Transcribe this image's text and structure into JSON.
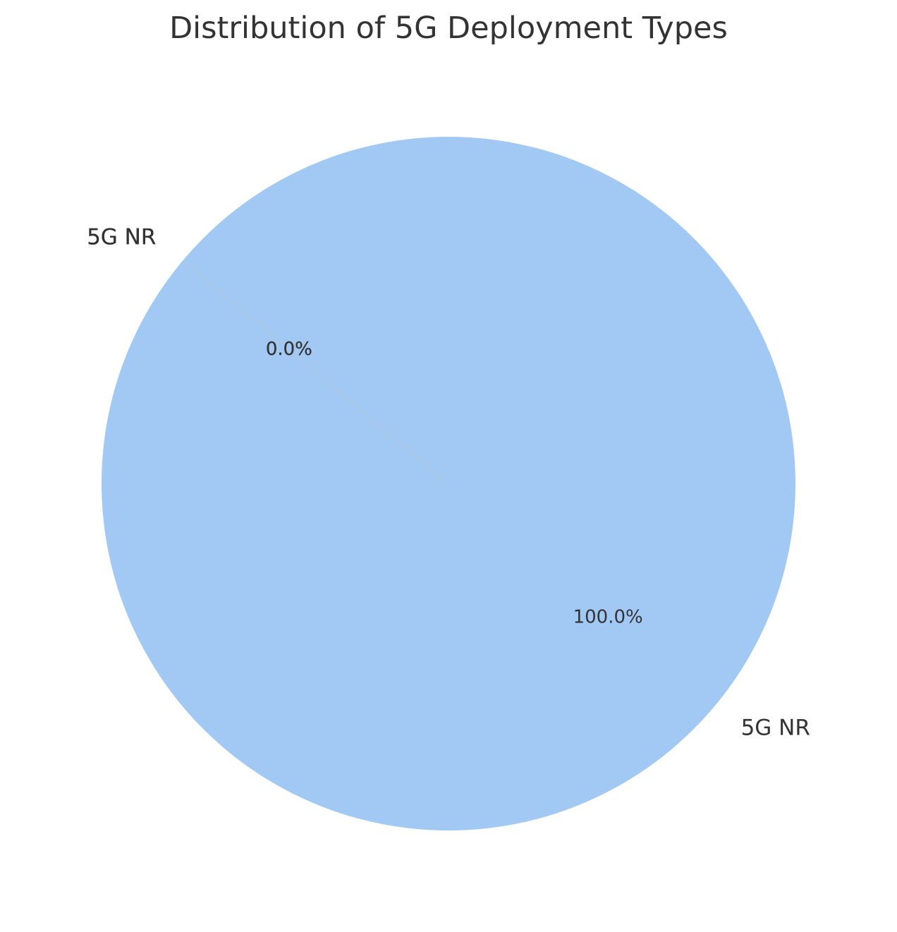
{
  "chart_data": {
    "type": "pie",
    "title": "Distribution of 5G Deployment Types",
    "categories": [
      "5G NR",
      "5G NR",
      "5G NR",
      "5G NR"
    ],
    "values": [
      100.0,
      0.0,
      0.0,
      0.0
    ],
    "value_labels": [
      "100.0%",
      "0.0%",
      "0.0%",
      "0.0%"
    ],
    "label_texts": [
      "5G NR",
      "5G NR",
      "5G NR",
      "5G NR"
    ],
    "colors": [
      "#a1c9f4",
      "#ffb482",
      "#8de5a1",
      "#ff9f9b"
    ],
    "start_angle_deg": 140,
    "direction": "counterclockwise",
    "legend": "none"
  }
}
